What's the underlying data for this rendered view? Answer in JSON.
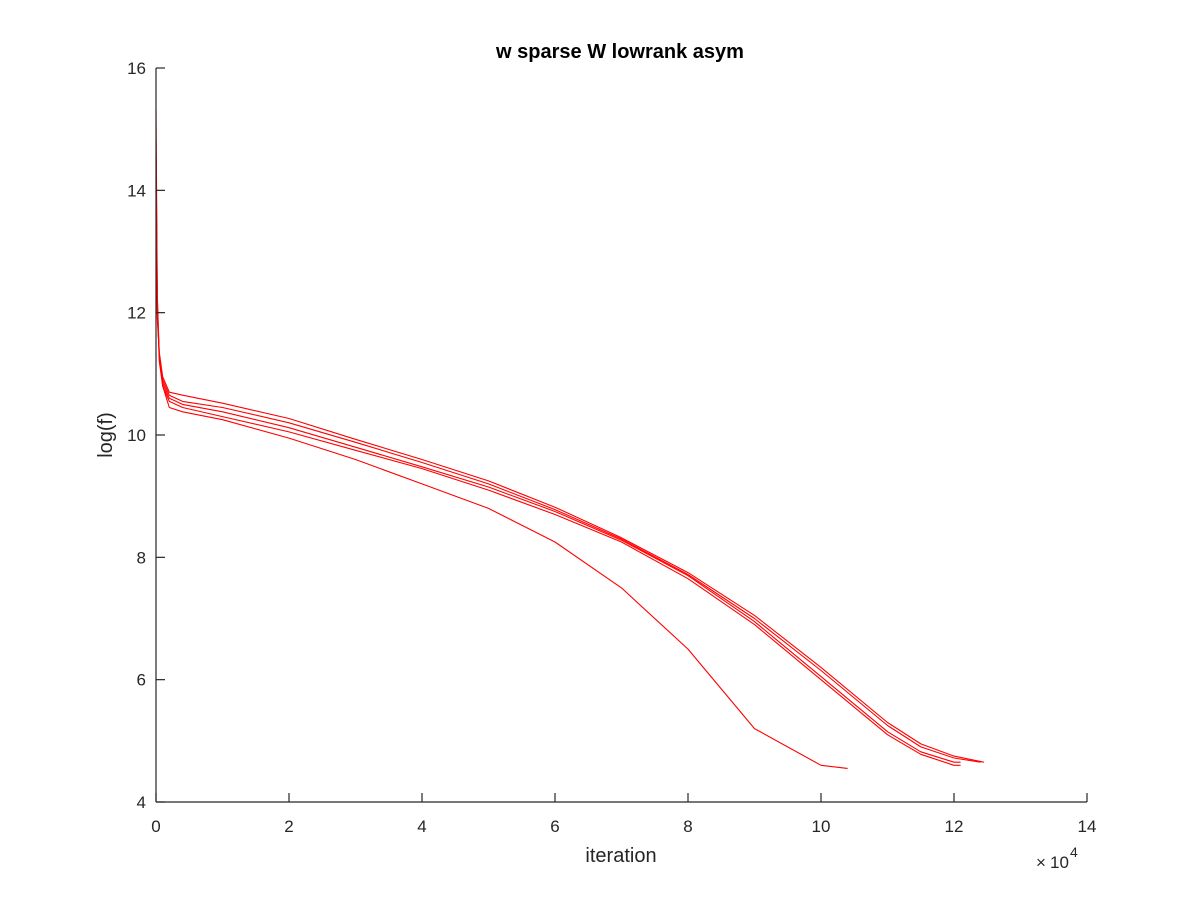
{
  "chart_data": {
    "type": "line",
    "title": "w sparse W lowrank asym",
    "xlabel": "iteration",
    "ylabel": "log(f)",
    "x_exponent_base": "10",
    "x_exponent_power": "4",
    "xlim": [
      0,
      14
    ],
    "ylim": [
      4,
      16
    ],
    "xticks": [
      0,
      2,
      4,
      6,
      8,
      10,
      12,
      14
    ],
    "yticks": [
      4,
      6,
      8,
      10,
      12,
      14,
      16
    ],
    "xtick_labels": [
      "0",
      "2",
      "4",
      "6",
      "8",
      "10",
      "12",
      "14"
    ],
    "ytick_labels": [
      "4",
      "6",
      "8",
      "10",
      "12",
      "14",
      "16"
    ],
    "grid": false,
    "legend": "none",
    "line_color": "#ff0000",
    "series": [
      {
        "x": [
          0,
          0.02,
          0.05,
          0.1,
          0.2,
          0.4,
          1,
          2,
          3,
          4,
          5,
          6,
          7,
          8,
          9,
          10,
          10.4
        ],
        "y": [
          15.3,
          12.3,
          11.3,
          10.8,
          10.45,
          10.38,
          10.25,
          9.95,
          9.6,
          9.2,
          8.8,
          8.25,
          7.5,
          6.5,
          5.2,
          4.6,
          4.55
        ]
      },
      {
        "x": [
          0,
          0.02,
          0.05,
          0.1,
          0.2,
          0.4,
          1,
          2,
          3,
          4,
          5,
          6,
          7,
          8,
          9,
          10,
          11,
          11.5,
          12,
          12.1
        ],
        "y": [
          14.8,
          12.2,
          11.2,
          10.8,
          10.55,
          10.45,
          10.3,
          10.05,
          9.75,
          9.45,
          9.1,
          8.7,
          8.25,
          7.65,
          6.9,
          6.0,
          5.1,
          4.78,
          4.6,
          4.6
        ]
      },
      {
        "x": [
          0,
          0.02,
          0.05,
          0.1,
          0.2,
          0.4,
          1,
          2,
          3,
          4,
          5,
          6,
          7,
          8,
          9,
          10,
          11,
          11.5,
          12,
          12.1
        ],
        "y": [
          14.5,
          12.1,
          11.25,
          10.85,
          10.6,
          10.5,
          10.38,
          10.12,
          9.8,
          9.48,
          9.15,
          8.75,
          8.28,
          7.7,
          6.95,
          6.05,
          5.15,
          4.82,
          4.65,
          4.65
        ]
      },
      {
        "x": [
          0,
          0.02,
          0.05,
          0.1,
          0.2,
          0.4,
          1,
          2,
          3,
          4,
          5,
          6,
          7,
          8,
          9,
          10,
          11,
          11.5,
          12,
          12.4
        ],
        "y": [
          14.2,
          12.0,
          11.3,
          10.9,
          10.65,
          10.55,
          10.45,
          10.2,
          9.88,
          9.55,
          9.2,
          8.78,
          8.3,
          7.72,
          7.0,
          6.15,
          5.25,
          4.9,
          4.72,
          4.65
        ]
      },
      {
        "x": [
          0,
          0.02,
          0.05,
          0.1,
          0.2,
          0.4,
          1,
          2,
          3,
          4,
          5,
          6,
          7,
          8,
          9,
          10,
          11,
          11.5,
          12,
          12.45
        ],
        "y": [
          14.0,
          11.9,
          11.35,
          10.95,
          10.7,
          10.65,
          10.52,
          10.27,
          9.93,
          9.6,
          9.25,
          8.82,
          8.32,
          7.75,
          7.05,
          6.2,
          5.3,
          4.95,
          4.75,
          4.65
        ]
      }
    ]
  }
}
